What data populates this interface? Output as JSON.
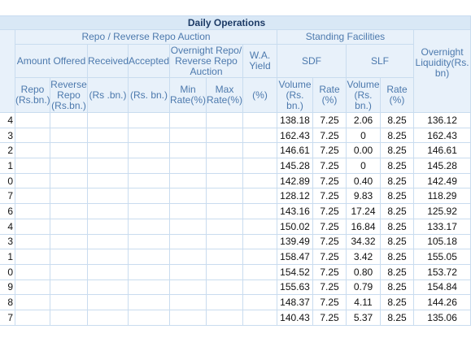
{
  "header": {
    "title": "Daily Operations",
    "auction": "Repo / Reverse Repo Auction",
    "standing": "Standing Facilities",
    "overnight": "Overnight Liquidity(Rs. bn)",
    "amount_offered": "Amount Offered",
    "received": "Received",
    "accepted": "Accepted",
    "overnight_auction": "Overnight Repo/ Reverse Repo Auction",
    "wa_yield": "W.A. Yield",
    "sdf": "SDF",
    "slf": "SLF",
    "repo": "Repo (Rs.bn.)",
    "reverse_repo": "Reverse Repo (Rs.bn.)",
    "received_unit": "(Rs .bn.)",
    "accepted_unit": "(Rs. bn.)",
    "min_rate": "Min Rate(%)",
    "max_rate": "Max Rate(%)",
    "yield_unit": "(%)",
    "sdf_volume": "Volume (Rs. bn.)",
    "sdf_rate": "Rate (%)",
    "slf_volume": "Volume (Rs. bn.)",
    "slf_rate": "Rate (%)"
  },
  "table": {
    "rows": [
      [
        "4",
        "138.18",
        "7.25",
        "2.06",
        "8.25",
        "136.12"
      ],
      [
        "3",
        "162.43",
        "7.25",
        "0",
        "8.25",
        "162.43"
      ],
      [
        "2",
        "146.61",
        "7.25",
        "0.00",
        "8.25",
        "146.61"
      ],
      [
        "1",
        "145.28",
        "7.25",
        "0",
        "8.25",
        "145.28"
      ],
      [
        "0",
        "142.89",
        "7.25",
        "0.40",
        "8.25",
        "142.49"
      ],
      [
        "7",
        "128.12",
        "7.25",
        "9.83",
        "8.25",
        "118.29"
      ],
      [
        "6",
        "143.16",
        "7.25",
        "17.24",
        "8.25",
        "125.92"
      ],
      [
        "4",
        "150.02",
        "7.25",
        "16.84",
        "8.25",
        "133.17"
      ],
      [
        "3",
        "139.49",
        "7.25",
        "34.32",
        "8.25",
        "105.18"
      ],
      [
        "1",
        "158.47",
        "7.25",
        "3.42",
        "8.25",
        "155.05"
      ],
      [
        "0",
        "154.52",
        "7.25",
        "0.80",
        "8.25",
        "153.72"
      ],
      [
        "9",
        "155.63",
        "7.25",
        "0.79",
        "8.25",
        "154.84"
      ],
      [
        "8",
        "148.37",
        "7.25",
        "4.11",
        "8.25",
        "144.26"
      ],
      [
        "7",
        "140.43",
        "7.25",
        "5.37",
        "8.25",
        "135.06"
      ]
    ]
  }
}
